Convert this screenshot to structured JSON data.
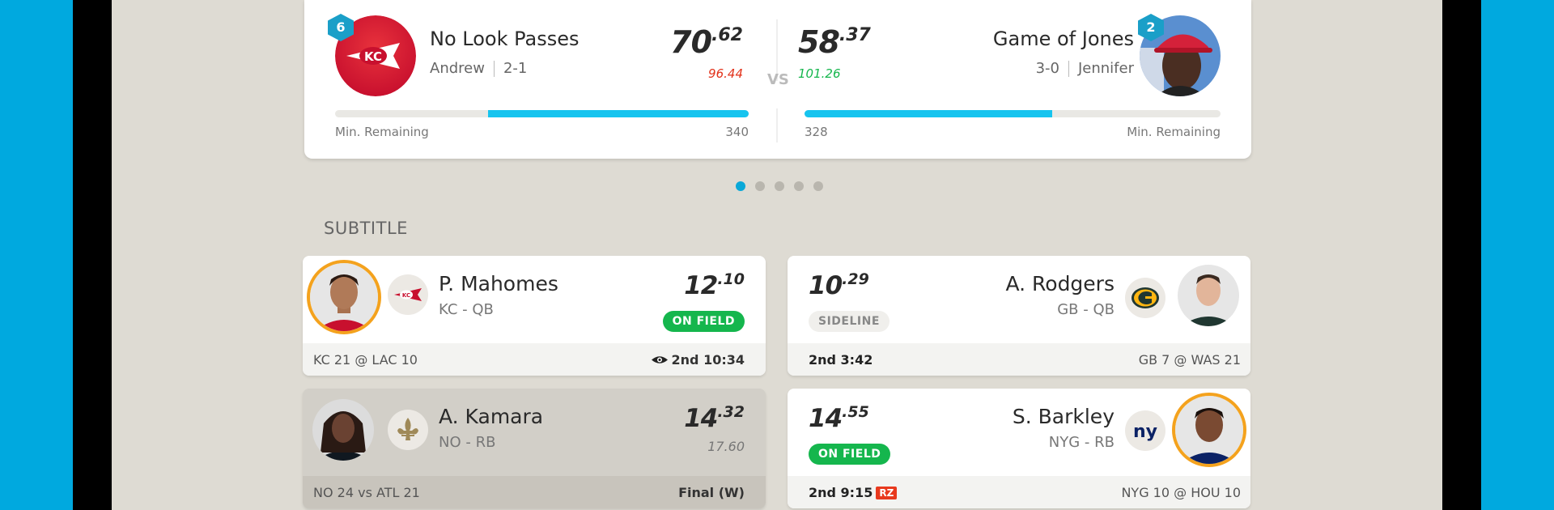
{
  "matchup": {
    "home": {
      "rank": "6",
      "team_name": "No Look Passes",
      "owner": "Andrew",
      "record": "2-1",
      "score_int": "70",
      "score_dec": ".62",
      "projected": "96.44",
      "projected_color": "#e2321b",
      "min_remaining_label": "Min. Remaining",
      "min_remaining": "340",
      "progress_fraction": 0.63
    },
    "away": {
      "rank": "2",
      "team_name": "Game of Jones",
      "owner": "Jennifer",
      "record": "3-0",
      "score_int": "58",
      "score_dec": ".37",
      "projected": "101.26",
      "projected_color": "#15b64d",
      "min_remaining_label": "Min. Remaining",
      "min_remaining": "328",
      "progress_fraction": 0.595
    },
    "vs_label": "VS"
  },
  "pagination": {
    "count": 5,
    "active_index": 0
  },
  "section_title": "SUBTITLE",
  "players": [
    {
      "name": "P. Mahomes",
      "team_pos_team": "KC",
      "team_pos_pos": "QB",
      "score_int": "12",
      "score_dec": ".10",
      "status": "ON FIELD",
      "game": "KC 21 @ LAC 10",
      "clock": "2nd 10:34",
      "logo": "chiefs-logo"
    },
    {
      "name": "A. Rodgers",
      "team_pos_team": "GB",
      "team_pos_pos": "QB",
      "score_int": "10",
      "score_dec": ".29",
      "status": "SIDELINE",
      "game": "GB 7 @ WAS 21",
      "clock": "2nd 3:42",
      "logo": "packers-logo"
    },
    {
      "name": "A. Kamara",
      "team_pos_team": "NO",
      "team_pos_pos": "RB",
      "score_int": "14",
      "score_dec": ".32",
      "projected": "17.60",
      "game": "NO 24 vs ATL 21",
      "clock": "Final (W)",
      "logo": "saints-logo"
    },
    {
      "name": "S. Barkley",
      "team_pos_team": "NYG",
      "team_pos_pos": "RB",
      "score_int": "14",
      "score_dec": ".55",
      "status": "ON FIELD",
      "game": "NYG 10 @ HOU 10",
      "clock": "2nd 9:15",
      "redzone": "RZ",
      "logo": "giants-logo"
    }
  ],
  "colors": {
    "accent": "#16c4ef",
    "on_field": "#15b64d",
    "rank_badge": "#1a9fc8",
    "redzone": "#e8391d"
  }
}
